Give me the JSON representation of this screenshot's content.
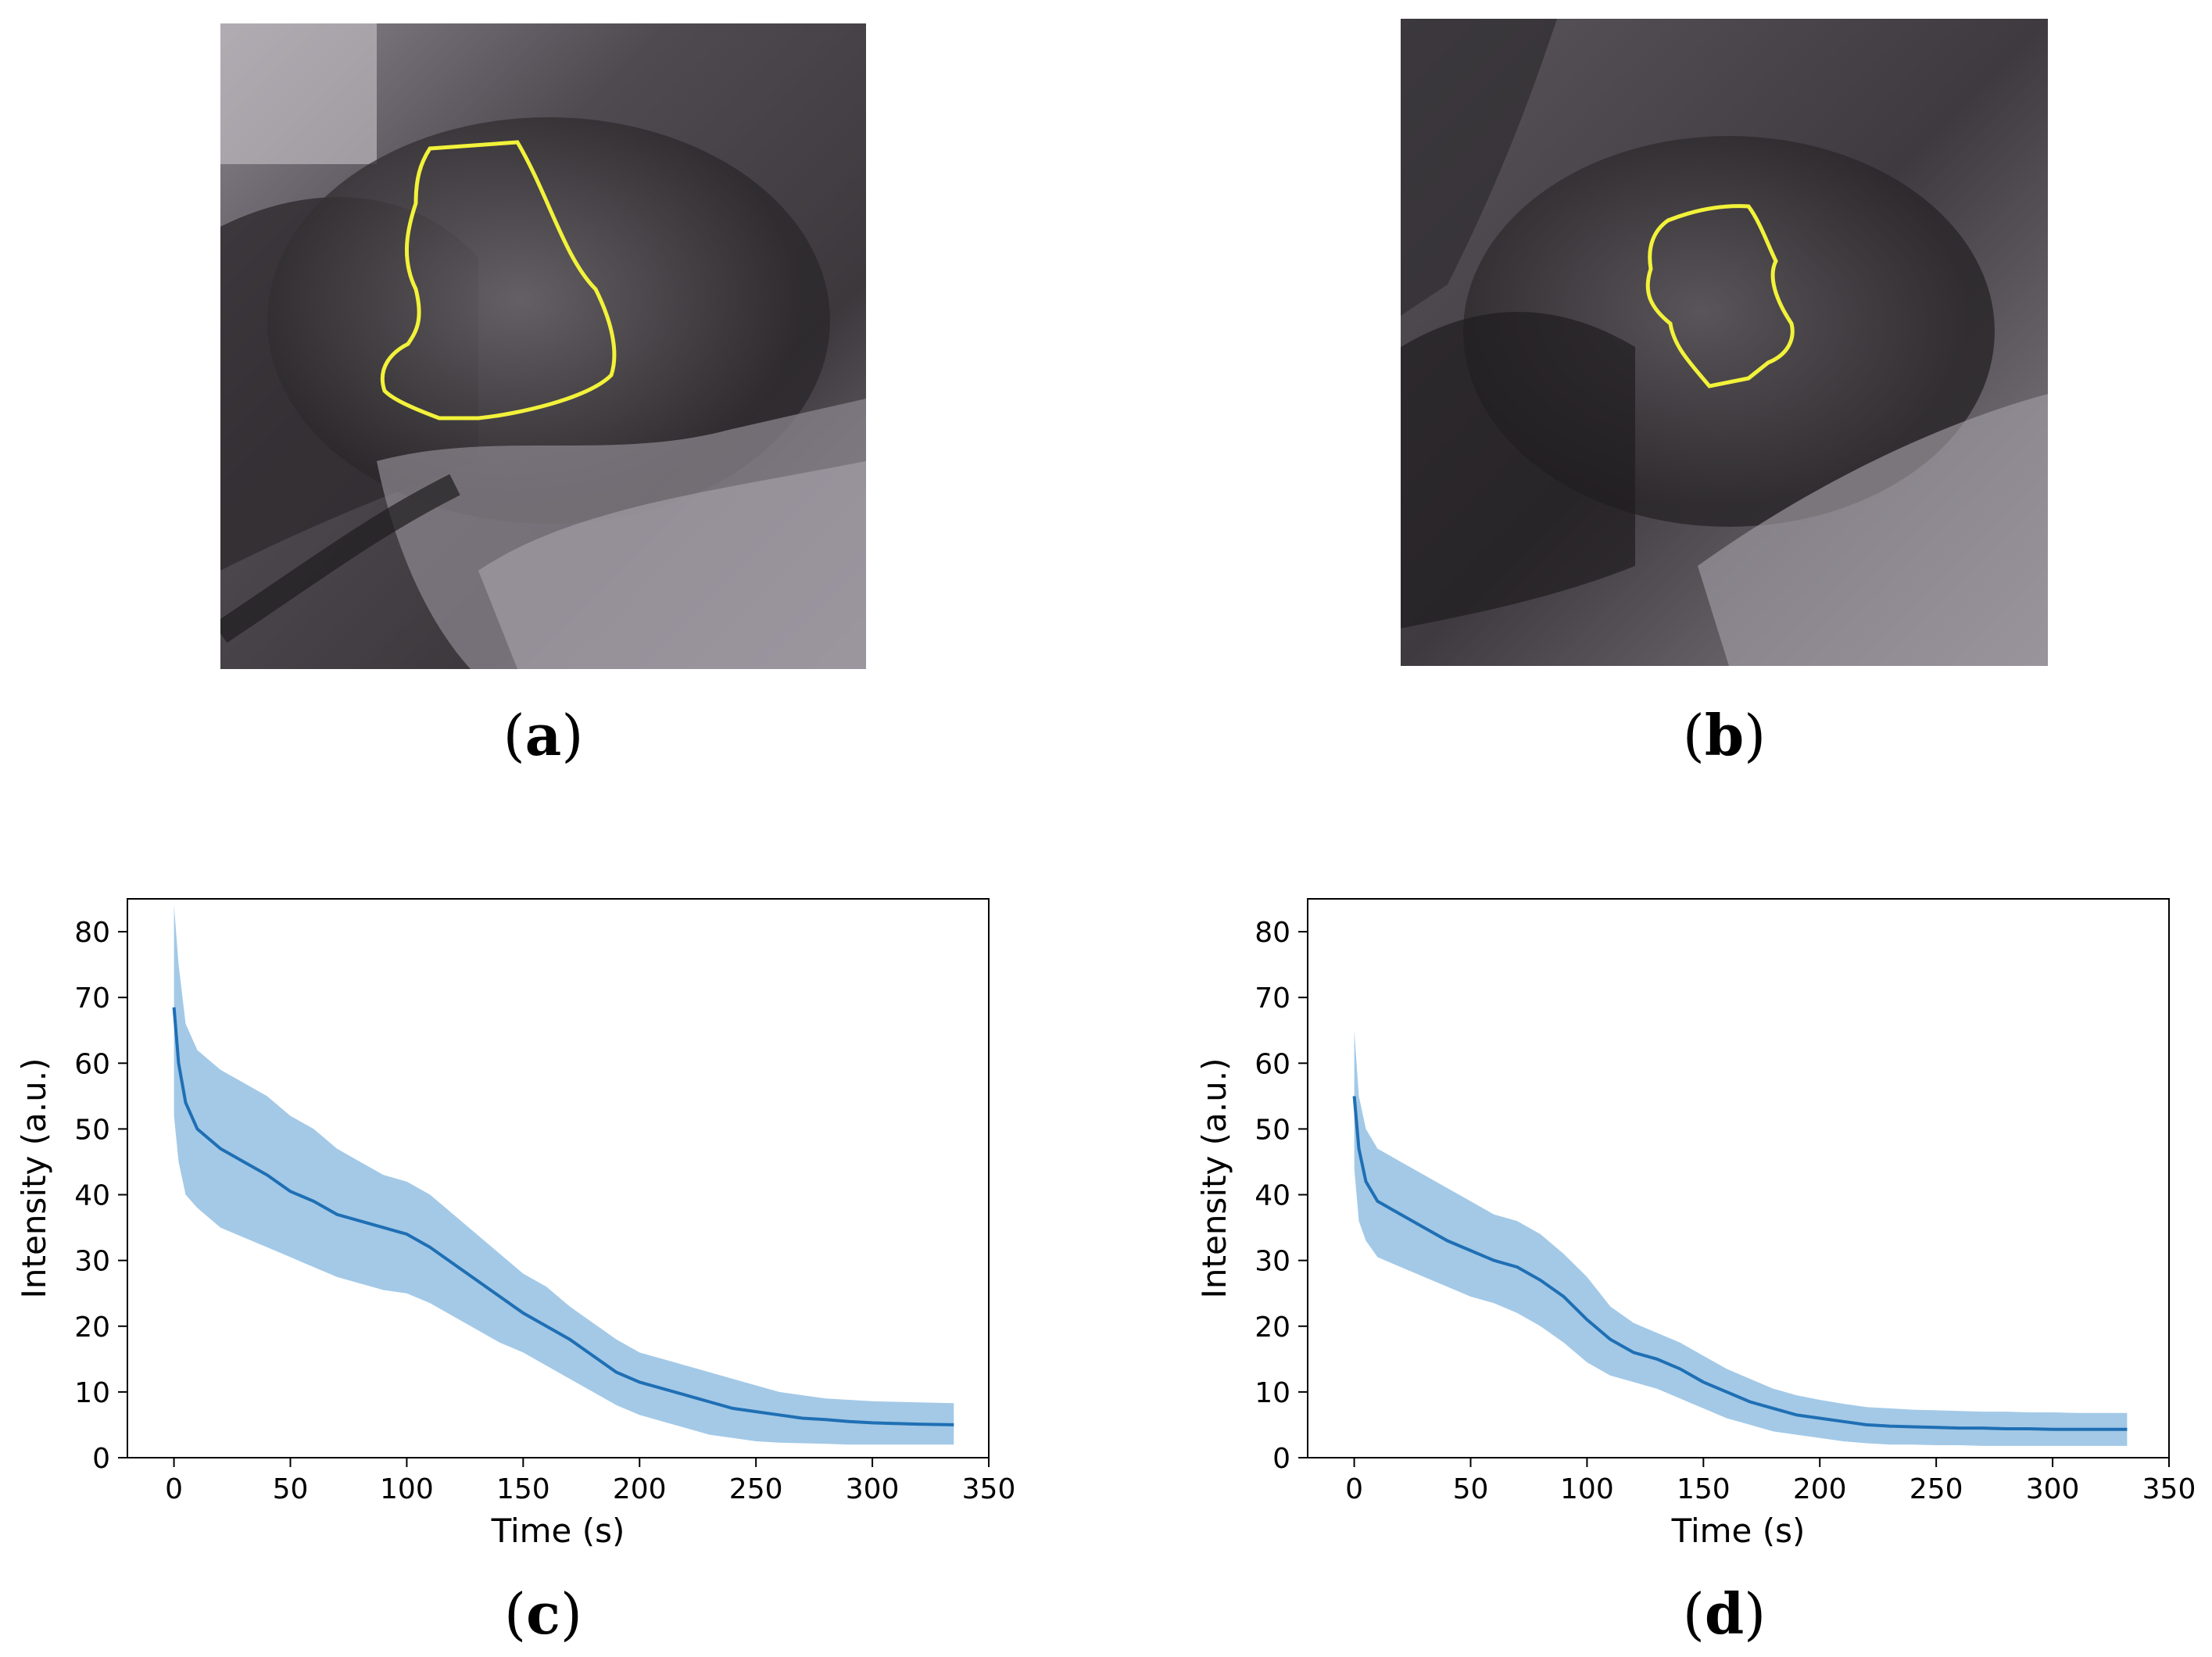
{
  "panels": {
    "a": {
      "label": "a"
    },
    "b": {
      "label": "b"
    },
    "c": {
      "label": "c"
    },
    "d": {
      "label": "d"
    }
  },
  "colors": {
    "line": "#1f6fb4",
    "band": "#9ec6e6",
    "outline": "#f2f23a"
  },
  "chart_data": [
    {
      "type": "line",
      "panel": "c",
      "xlabel": "Time (s)",
      "ylabel": "Intensity (a.u.)",
      "xlim": [
        -20,
        350
      ],
      "ylim": [
        0,
        85
      ],
      "xticks": [
        0,
        50,
        100,
        150,
        200,
        250,
        300,
        350
      ],
      "yticks": [
        0,
        10,
        20,
        30,
        40,
        50,
        60,
        70,
        80
      ],
      "grid": false,
      "series": [
        {
          "x": [
            0,
            2,
            5,
            10,
            20,
            30,
            40,
            50,
            60,
            70,
            80,
            90,
            100,
            110,
            120,
            130,
            140,
            150,
            160,
            170,
            180,
            190,
            200,
            210,
            220,
            230,
            240,
            250,
            260,
            270,
            280,
            290,
            300,
            310,
            320,
            335
          ],
          "mean": [
            68.5,
            60,
            54,
            50,
            47,
            45,
            43,
            40.5,
            39,
            37,
            36,
            35,
            34,
            32,
            29.5,
            27,
            24.5,
            22,
            20,
            18,
            15.5,
            13,
            11.5,
            10.5,
            9.5,
            8.5,
            7.5,
            7,
            6.5,
            6,
            5.8,
            5.5,
            5.3,
            5.2,
            5.1,
            5.0
          ],
          "upper": [
            84,
            75,
            66,
            62,
            59,
            57,
            55,
            52,
            50,
            47,
            45,
            43,
            42,
            40,
            37,
            34,
            31,
            28,
            26,
            23,
            20.5,
            18,
            16,
            15,
            14,
            13,
            12,
            11,
            10,
            9.5,
            9,
            8.8,
            8.6,
            8.5,
            8.4,
            8.3
          ],
          "lower": [
            52,
            45,
            40,
            38,
            35,
            33.5,
            32,
            30.5,
            29,
            27.5,
            26.5,
            25.5,
            25,
            23.5,
            21.5,
            19.5,
            17.5,
            16,
            14,
            12,
            10,
            8,
            6.5,
            5.5,
            4.5,
            3.5,
            3,
            2.5,
            2.3,
            2.2,
            2.1,
            2,
            2,
            2,
            2,
            2
          ]
        }
      ]
    },
    {
      "type": "line",
      "panel": "d",
      "xlabel": "Time (s)",
      "ylabel": "Intensity (a.u.)",
      "xlim": [
        -20,
        350
      ],
      "ylim": [
        0,
        85
      ],
      "xticks": [
        0,
        50,
        100,
        150,
        200,
        250,
        300,
        350
      ],
      "yticks": [
        0,
        10,
        20,
        30,
        40,
        50,
        60,
        70,
        80
      ],
      "grid": false,
      "series": [
        {
          "x": [
            0,
            2,
            5,
            10,
            20,
            30,
            40,
            50,
            60,
            70,
            80,
            90,
            100,
            110,
            120,
            130,
            140,
            150,
            160,
            170,
            180,
            190,
            200,
            210,
            220,
            230,
            240,
            250,
            260,
            270,
            280,
            290,
            300,
            310,
            320,
            332
          ],
          "mean": [
            55,
            47,
            42,
            39,
            37,
            35,
            33,
            31.5,
            30,
            29,
            27,
            24.5,
            21,
            18,
            16,
            15,
            13.5,
            11.5,
            10,
            8.5,
            7.5,
            6.5,
            6,
            5.5,
            5,
            4.8,
            4.7,
            4.6,
            4.5,
            4.5,
            4.4,
            4.4,
            4.3,
            4.3,
            4.3,
            4.3
          ],
          "upper": [
            65,
            55,
            50,
            47,
            45,
            43,
            41,
            39,
            37,
            36,
            34,
            31,
            27.5,
            23,
            20.5,
            19,
            17.5,
            15.5,
            13.5,
            12,
            10.5,
            9.5,
            8.8,
            8.2,
            7.7,
            7.5,
            7.3,
            7.2,
            7.1,
            7,
            7,
            6.9,
            6.9,
            6.8,
            6.8,
            6.8
          ],
          "lower": [
            44,
            36,
            33,
            30.5,
            29,
            27.5,
            26,
            24.5,
            23.5,
            22,
            20,
            17.5,
            14.5,
            12.5,
            11.5,
            10.5,
            9,
            7.5,
            6,
            5,
            4,
            3.5,
            3,
            2.5,
            2.2,
            2,
            2,
            1.9,
            1.9,
            1.8,
            1.8,
            1.8,
            1.8,
            1.8,
            1.8,
            1.8
          ]
        }
      ]
    }
  ]
}
